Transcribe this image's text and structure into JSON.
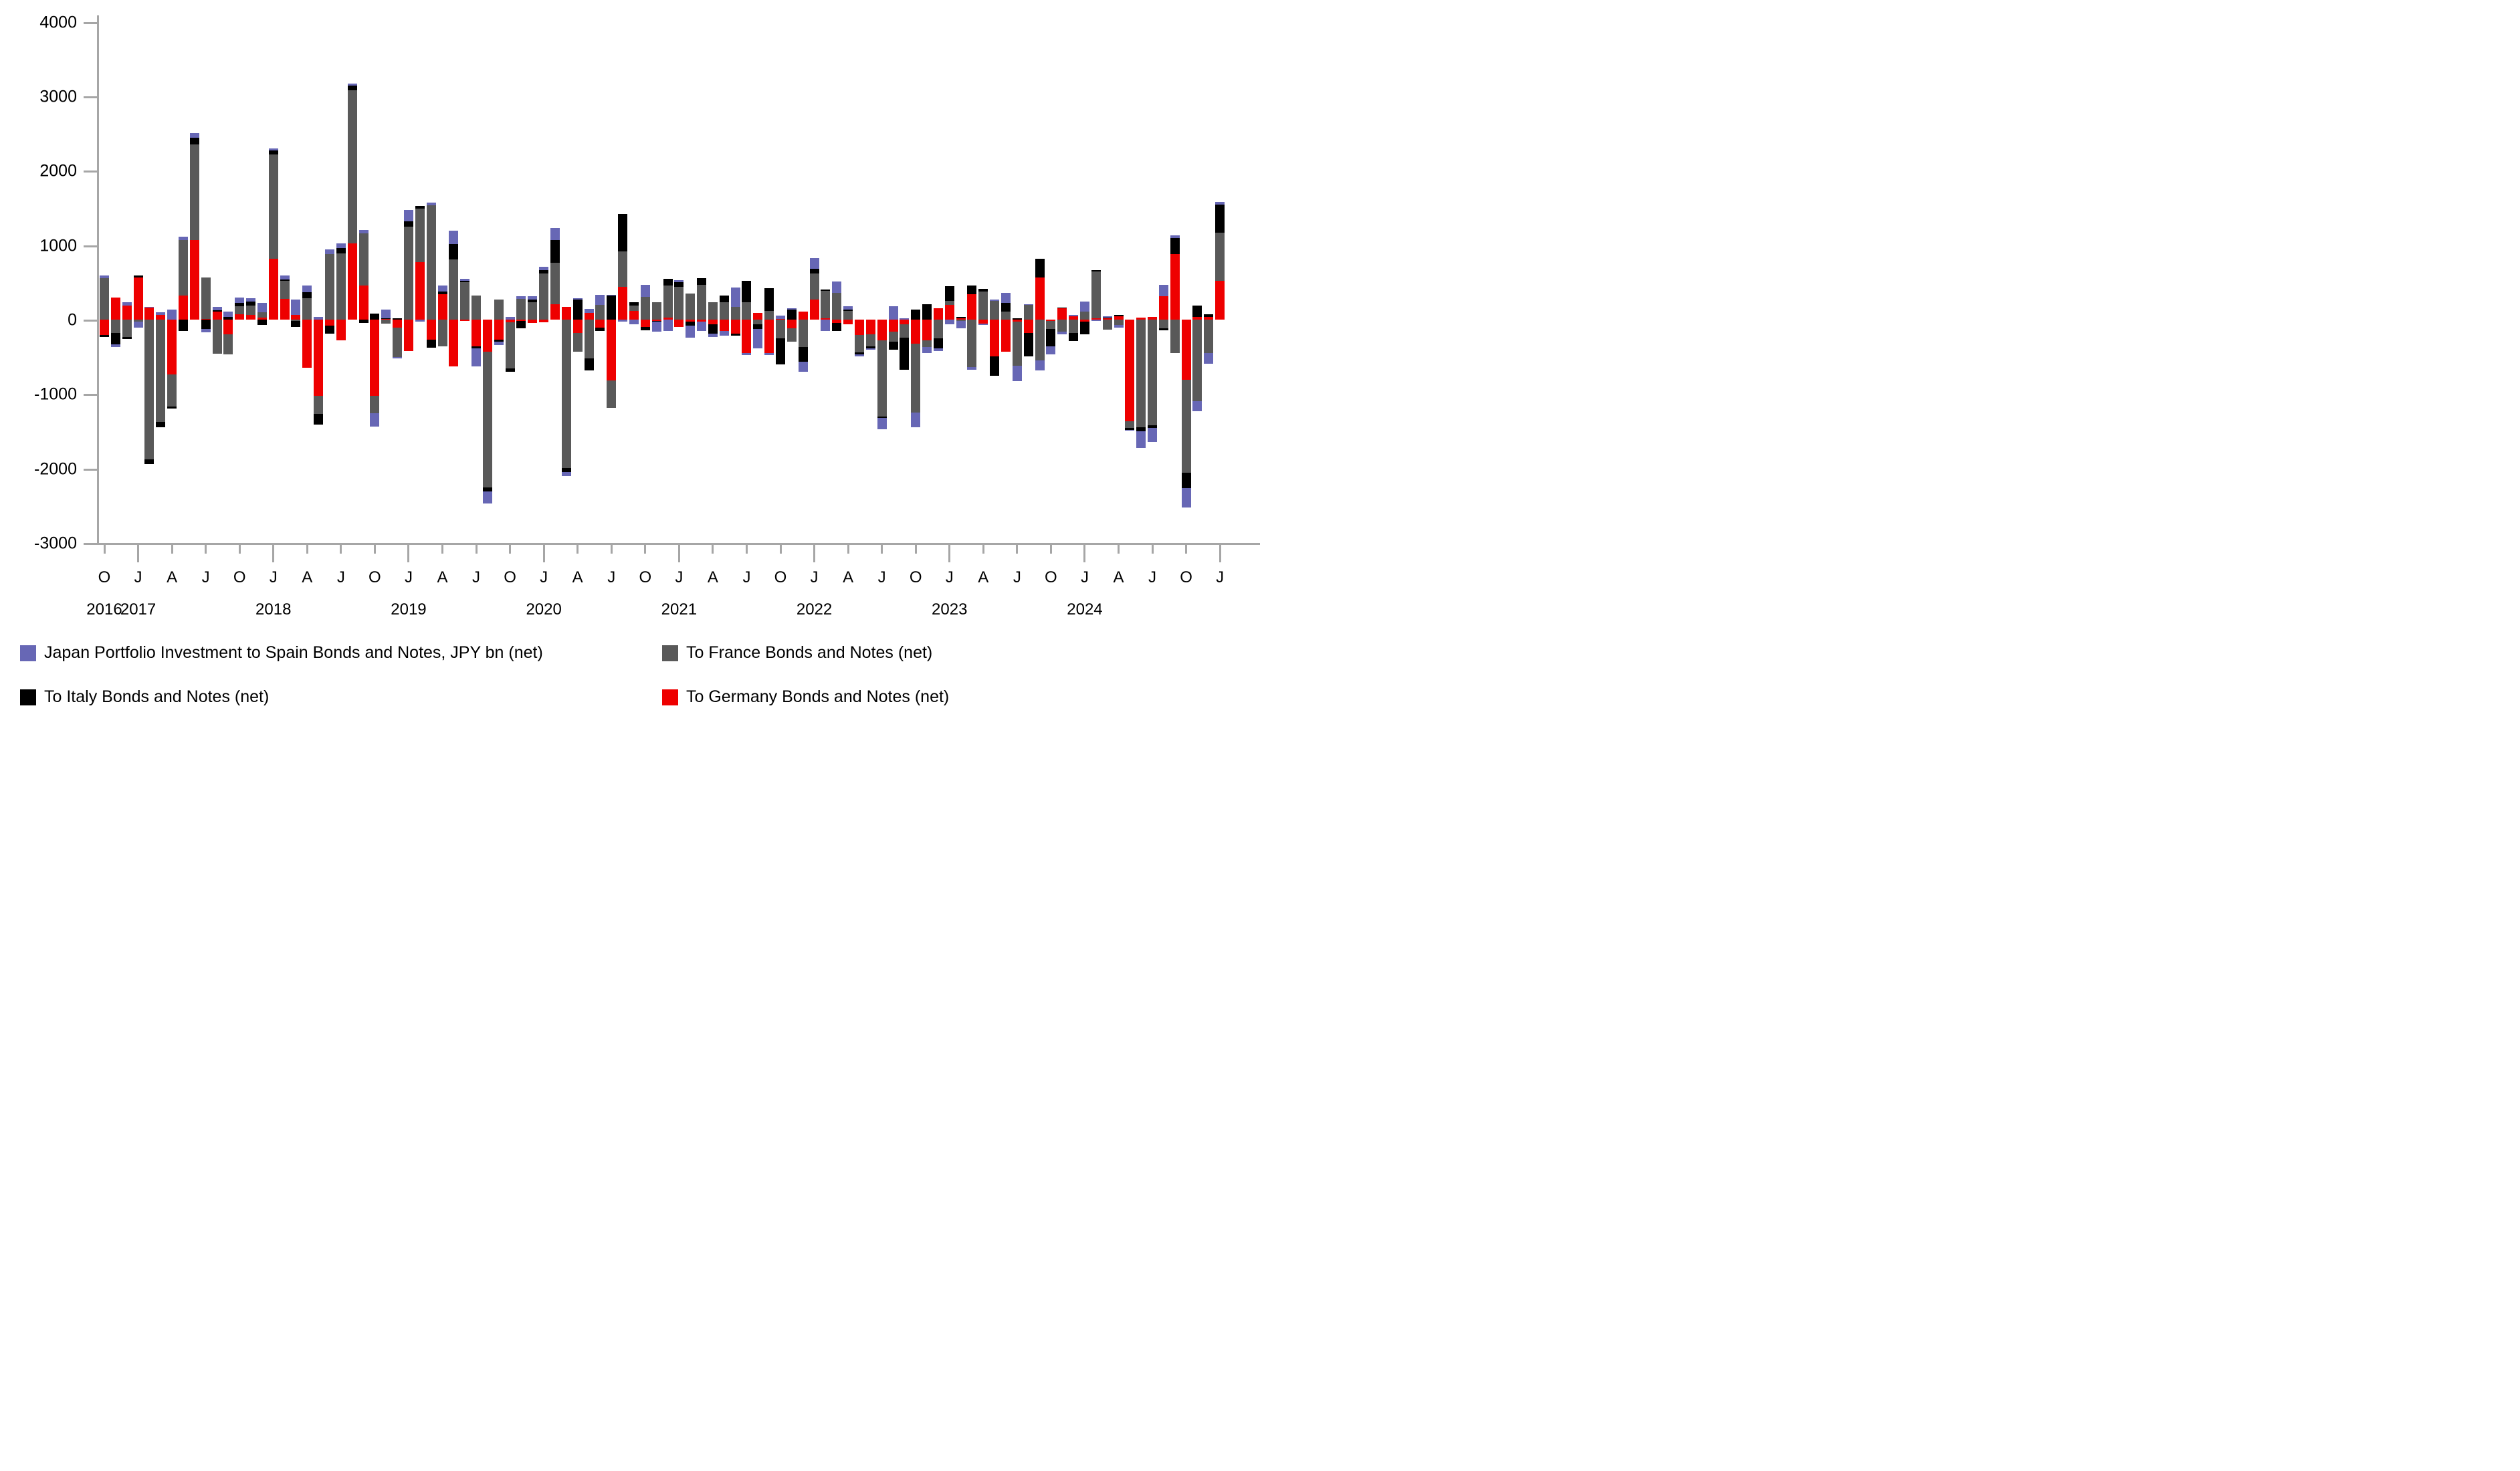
{
  "chart_data": {
    "type": "bar",
    "stacked": true,
    "unit": "JPY bn (net), monthly",
    "title": "",
    "xlabel": "",
    "ylabel": "",
    "ylim": [
      -3000,
      4000
    ],
    "ytick_step": 1000,
    "grid": false,
    "legend_position": "bottom",
    "stack_order_from_zero": [
      "germany",
      "france",
      "italy",
      "spain"
    ],
    "colors": {
      "spain": "#6767b5",
      "france": "#595959",
      "italy": "#000000",
      "germany": "#ee0000",
      "axis": "#a6a6a6",
      "text": "#000000",
      "background": "#ffffff"
    },
    "legend": [
      {
        "key": "spain",
        "label": "Japan Portfolio Investment to Spain Bonds and Notes, JPY bn (net)"
      },
      {
        "key": "france",
        "label": "To France Bonds and Notes (net)"
      },
      {
        "key": "italy",
        "label": "To Italy Bonds and Notes (net)"
      },
      {
        "key": "germany",
        "label": "To Germany Bonds and Notes (net)"
      }
    ],
    "y_ticks": [
      4000,
      3000,
      2000,
      1000,
      0,
      -1000,
      -2000,
      -3000
    ],
    "x_month_letters": [
      "O",
      "J",
      "A",
      "J",
      "O",
      "J",
      "A",
      "J",
      "O",
      "J",
      "A",
      "J",
      "O",
      "J",
      "A",
      "J",
      "O",
      "J",
      "A",
      "J",
      "O",
      "J",
      "A",
      "J",
      "O",
      "J",
      "A",
      "J",
      "O",
      "J",
      "A",
      "J",
      "O",
      "J"
    ],
    "x_year_labels": [
      {
        "label": "2016",
        "month_index": 1
      },
      {
        "label": "2017",
        "month_index": 4
      },
      {
        "label": "2018",
        "month_index": 16
      },
      {
        "label": "2019",
        "month_index": 28
      },
      {
        "label": "2020",
        "month_index": 40
      },
      {
        "label": "2021",
        "month_index": 52
      },
      {
        "label": "2022",
        "month_index": 64
      },
      {
        "label": "2023",
        "month_index": 76
      },
      {
        "label": "2024",
        "month_index": 88
      }
    ],
    "months": [
      {
        "ym": "2016-10",
        "spain": 30,
        "france": 560,
        "italy": -25,
        "germany": -210
      },
      {
        "ym": "2016-11",
        "spain": -40,
        "france": -180,
        "italy": -150,
        "germany": 300
      },
      {
        "ym": "2016-12",
        "spain": 40,
        "france": -235,
        "italy": -30,
        "germany": 190
      },
      {
        "ym": "2017-01",
        "spain": -75,
        "france": -30,
        "italy": 25,
        "germany": 565
      },
      {
        "ym": "2017-02",
        "spain": 15,
        "france": -1880,
        "italy": -60,
        "germany": 160
      },
      {
        "ym": "2017-03",
        "spain": 35,
        "france": -1370,
        "italy": -75,
        "germany": 65
      },
      {
        "ym": "2017-04",
        "spain": 135,
        "france": -430,
        "italy": -25,
        "germany": -740
      },
      {
        "ym": "2017-05",
        "spain": 40,
        "france": 750,
        "italy": -150,
        "germany": 320
      },
      {
        "ym": "2017-06",
        "spain": 70,
        "france": 1280,
        "italy": 90,
        "germany": 1070
      },
      {
        "ym": "2017-07",
        "spain": -40,
        "france": 560,
        "italy": -130,
        "germany": 10
      },
      {
        "ym": "2017-08",
        "spain": 45,
        "france": -455,
        "italy": 20,
        "germany": 105
      },
      {
        "ym": "2017-09",
        "spain": 75,
        "france": -275,
        "italy": 35,
        "germany": -195
      },
      {
        "ym": "2017-10",
        "spain": 75,
        "france": 105,
        "italy": 45,
        "germany": 75
      },
      {
        "ym": "2017-11",
        "spain": 40,
        "france": 130,
        "italy": 55,
        "germany": 60
      },
      {
        "ym": "2017-12",
        "spain": 130,
        "france": 65,
        "italy": -70,
        "germany": 30
      },
      {
        "ym": "2018-01",
        "spain": 25,
        "france": 1400,
        "italy": 60,
        "germany": 815
      },
      {
        "ym": "2018-02",
        "spain": 55,
        "france": 245,
        "italy": 20,
        "germany": 275
      },
      {
        "ym": "2018-03",
        "spain": 200,
        "france": -15,
        "italy": -85,
        "germany": 65
      },
      {
        "ym": "2018-04",
        "spain": 90,
        "france": 290,
        "italy": 75,
        "germany": -650
      },
      {
        "ym": "2018-05",
        "spain": 35,
        "france": -250,
        "italy": -140,
        "germany": -1020
      },
      {
        "ym": "2018-06",
        "spain": 60,
        "france": 880,
        "italy": -110,
        "germany": -80
      },
      {
        "ym": "2018-07",
        "spain": 60,
        "france": 890,
        "italy": 75,
        "germany": -275
      },
      {
        "ym": "2018-08",
        "spain": 30,
        "france": 2060,
        "italy": 60,
        "germany": 1020
      },
      {
        "ym": "2018-09",
        "spain": 40,
        "france": 700,
        "italy": -45,
        "germany": 460
      },
      {
        "ym": "2018-10",
        "spain": -180,
        "france": -240,
        "italy": 80,
        "germany": -1020
      },
      {
        "ym": "2018-11",
        "spain": 120,
        "france": -55,
        "italy": 10,
        "germany": 5
      },
      {
        "ym": "2018-12",
        "spain": -25,
        "france": -390,
        "italy": 20,
        "germany": -110
      },
      {
        "ym": "2019-01",
        "spain": 150,
        "france": 1250,
        "italy": 70,
        "germany": -420
      },
      {
        "ym": "2019-02",
        "spain": -25,
        "france": 715,
        "italy": 40,
        "germany": 775
      },
      {
        "ym": "2019-03",
        "spain": 30,
        "france": 1540,
        "italy": -110,
        "germany": -270
      },
      {
        "ym": "2019-04",
        "spain": 75,
        "france": -360,
        "italy": 40,
        "germany": 340
      },
      {
        "ym": "2019-05",
        "spain": 180,
        "france": 810,
        "italy": 205,
        "germany": -625
      },
      {
        "ym": "2019-06",
        "spain": 20,
        "france": 500,
        "italy": 25,
        "germany": -20
      },
      {
        "ym": "2019-07",
        "spain": -245,
        "france": 320,
        "italy": -25,
        "germany": -360
      },
      {
        "ym": "2019-08",
        "spain": -160,
        "france": -1820,
        "italy": -60,
        "germany": -430
      },
      {
        "ym": "2019-09",
        "spain": -45,
        "france": 270,
        "italy": -30,
        "germany": -270
      },
      {
        "ym": "2019-10",
        "spain": 35,
        "france": -620,
        "italy": -45,
        "germany": -35
      },
      {
        "ym": "2019-11",
        "spain": 30,
        "france": 280,
        "italy": -105,
        "germany": -15
      },
      {
        "ym": "2019-12",
        "spain": 45,
        "france": 235,
        "italy": 30,
        "germany": -45
      },
      {
        "ym": "2020-01",
        "spain": 45,
        "france": 620,
        "italy": 45,
        "germany": -40
      },
      {
        "ym": "2020-02",
        "spain": 165,
        "france": 560,
        "italy": 300,
        "germany": 205
      },
      {
        "ym": "2020-03",
        "spain": -50,
        "france": -1990,
        "italy": -60,
        "germany": 175
      },
      {
        "ym": "2020-04",
        "spain": 20,
        "france": -250,
        "italy": 265,
        "germany": -180
      },
      {
        "ym": "2020-05",
        "spain": 50,
        "france": -525,
        "italy": -160,
        "germany": 90
      },
      {
        "ym": "2020-06",
        "spain": 135,
        "france": 200,
        "italy": -45,
        "germany": -110
      },
      {
        "ym": "2020-07",
        "spain": 15,
        "france": -370,
        "italy": 320,
        "germany": -820
      },
      {
        "ym": "2020-08",
        "spain": -25,
        "france": 480,
        "italy": 500,
        "germany": 440
      },
      {
        "ym": "2020-09",
        "spain": -60,
        "france": 75,
        "italy": 45,
        "germany": 115
      },
      {
        "ym": "2020-10",
        "spain": 165,
        "france": 305,
        "italy": -45,
        "germany": -95
      },
      {
        "ym": "2020-11",
        "spain": -135,
        "france": 230,
        "italy": -10,
        "germany": -20
      },
      {
        "ym": "2020-12",
        "spain": -150,
        "france": 430,
        "italy": 90,
        "germany": 25
      },
      {
        "ym": "2021-01",
        "spain": 30,
        "france": 440,
        "italy": 60,
        "germany": -95
      },
      {
        "ym": "2021-02",
        "spain": -160,
        "france": 350,
        "italy": -50,
        "germany": -30
      },
      {
        "ym": "2021-03",
        "spain": -125,
        "france": 470,
        "italy": 90,
        "germany": -30
      },
      {
        "ym": "2021-04",
        "spain": -45,
        "france": 230,
        "italy": -120,
        "germany": -65
      },
      {
        "ym": "2021-05",
        "spain": -60,
        "france": 230,
        "italy": 90,
        "germany": -155
      },
      {
        "ym": "2021-06",
        "spain": 265,
        "france": 170,
        "italy": -30,
        "germany": -185
      },
      {
        "ym": "2021-07",
        "spain": -30,
        "france": 230,
        "italy": 290,
        "germany": -450
      },
      {
        "ym": "2021-08",
        "spain": -265,
        "france": -60,
        "italy": -65,
        "germany": 90
      },
      {
        "ym": "2021-09",
        "spain": -30,
        "france": 115,
        "italy": 310,
        "germany": -450
      },
      {
        "ym": "2021-10",
        "spain": 45,
        "france": -250,
        "italy": -355,
        "germany": 10
      },
      {
        "ym": "2021-11",
        "spain": 15,
        "france": -180,
        "italy": 135,
        "germany": -120
      },
      {
        "ym": "2021-12",
        "spain": -135,
        "france": -370,
        "italy": -195,
        "germany": 105
      },
      {
        "ym": "2022-01",
        "spain": 150,
        "france": 355,
        "italy": 60,
        "germany": 265
      },
      {
        "ym": "2022-02",
        "spain": -150,
        "france": 370,
        "italy": 15,
        "germany": 15
      },
      {
        "ym": "2022-03",
        "spain": 150,
        "france": 360,
        "italy": -105,
        "germany": -45
      },
      {
        "ym": "2022-04",
        "spain": 45,
        "france": 120,
        "italy": 15,
        "germany": -60
      },
      {
        "ym": "2022-05",
        "spain": -20,
        "france": -235,
        "italy": -30,
        "germany": -205
      },
      {
        "ym": "2022-06",
        "spain": -15,
        "france": -165,
        "italy": -25,
        "germany": -195
      },
      {
        "ym": "2022-07",
        "spain": -150,
        "france": -1020,
        "italy": -20,
        "germany": -280
      },
      {
        "ym": "2022-08",
        "spain": 180,
        "france": -135,
        "italy": -105,
        "germany": -165
      },
      {
        "ym": "2022-09",
        "spain": 20,
        "france": -180,
        "italy": -430,
        "germany": -60
      },
      {
        "ym": "2022-10",
        "spain": -200,
        "france": -920,
        "italy": 135,
        "germany": -325
      },
      {
        "ym": "2022-11",
        "spain": -75,
        "france": -90,
        "italy": 210,
        "germany": -280
      },
      {
        "ym": "2022-12",
        "spain": -40,
        "france": -250,
        "italy": -135,
        "germany": 150
      },
      {
        "ym": "2023-01",
        "spain": -60,
        "france": 60,
        "italy": 195,
        "germany": 195
      },
      {
        "ym": "2023-02",
        "spain": -105,
        "france": -15,
        "italy": 20,
        "germany": 20
      },
      {
        "ym": "2023-03",
        "spain": -30,
        "france": -640,
        "italy": 120,
        "germany": 340
      },
      {
        "ym": "2023-04",
        "spain": -25,
        "france": 380,
        "italy": 30,
        "germany": -50
      },
      {
        "ym": "2023-05",
        "spain": 15,
        "france": 250,
        "italy": -265,
        "germany": -490
      },
      {
        "ym": "2023-06",
        "spain": 135,
        "france": 105,
        "italy": 120,
        "germany": -430
      },
      {
        "ym": "2023-07",
        "spain": -210,
        "france": -590,
        "italy": 20,
        "germany": -30
      },
      {
        "ym": "2023-08",
        "spain": 15,
        "france": 195,
        "italy": -310,
        "germany": -180
      },
      {
        "ym": "2023-09",
        "spain": -135,
        "france": -550,
        "italy": 250,
        "germany": 565
      },
      {
        "ym": "2023-10",
        "spain": -105,
        "france": -105,
        "italy": -235,
        "germany": -20
      },
      {
        "ym": "2023-11",
        "spain": -30,
        "france": -165,
        "italy": 15,
        "germany": 150
      },
      {
        "ym": "2023-12",
        "spain": 20,
        "france": -180,
        "italy": -105,
        "germany": 45
      },
      {
        "ym": "2024-01",
        "spain": 135,
        "france": 105,
        "italy": -165,
        "germany": -30
      },
      {
        "ym": "2024-02",
        "spain": -20,
        "france": 630,
        "italy": 20,
        "germany": 15
      },
      {
        "ym": "2024-03",
        "spain": 20,
        "france": -135,
        "italy": 10,
        "germany": 15
      },
      {
        "ym": "2024-04",
        "spain": -30,
        "france": -75,
        "italy": 20,
        "germany": 45
      },
      {
        "ym": "2024-05",
        "spain": -10,
        "france": -90,
        "italy": -30,
        "germany": -1365
      },
      {
        "ym": "2024-06",
        "spain": -220,
        "france": -1450,
        "italy": -50,
        "germany": 25
      },
      {
        "ym": "2024-07",
        "spain": -190,
        "france": -1420,
        "italy": -35,
        "germany": 35
      },
      {
        "ym": "2024-08",
        "spain": 155,
        "france": -120,
        "italy": -25,
        "germany": 310
      },
      {
        "ym": "2024-09",
        "spain": 35,
        "france": -450,
        "italy": 215,
        "germany": 880
      },
      {
        "ym": "2024-10",
        "spain": -260,
        "france": -1250,
        "italy": -200,
        "germany": -810
      },
      {
        "ym": "2024-11",
        "spain": -130,
        "france": -1100,
        "italy": 150,
        "germany": 40
      },
      {
        "ym": "2024-12",
        "spain": -145,
        "france": -450,
        "italy": 35,
        "germany": 35
      },
      {
        "ym": "2025-01",
        "spain": 35,
        "france": 640,
        "italy": 380,
        "germany": 525
      }
    ]
  }
}
